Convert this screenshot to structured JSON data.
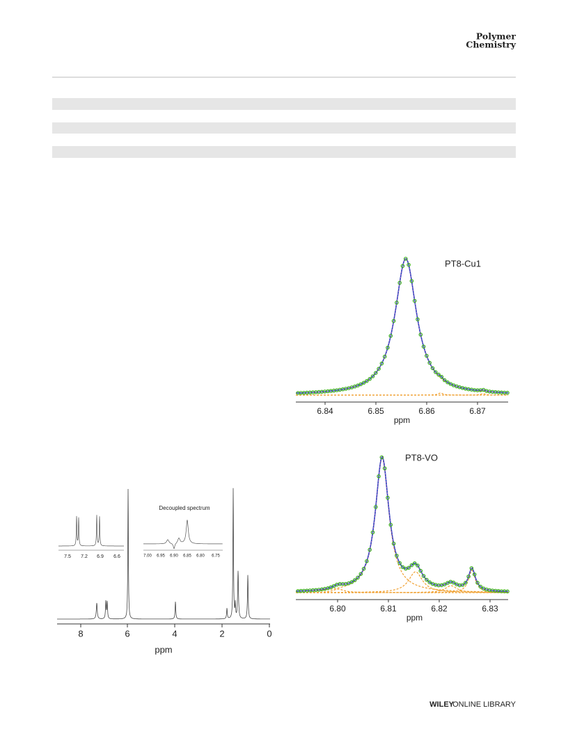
{
  "header": {
    "title_lines": [
      "Polymer",
      "Chemistry"
    ]
  },
  "figures": [
    {
      "x_axis_label": "ppm",
      "xticks": [
        "8",
        "6",
        "4",
        "2",
        "0"
      ],
      "insets": [
        {
          "xticks": [
            "7.5",
            "7.2",
            "6.9",
            "6.6"
          ]
        },
        {
          "title": "Decoupled spectrum",
          "xticks": [
            "7.00",
            "6.95",
            "6.90",
            "6.85",
            "6.80",
            "6.75"
          ]
        }
      ]
    },
    {
      "label": "PT8-Cu1",
      "x_axis_label": "ppm",
      "xticks": [
        "6.84",
        "6.85",
        "6.86",
        "6.87"
      ]
    },
    {
      "label": "PT8-VO",
      "x_axis_label": "ppm",
      "xticks": [
        "6.80",
        "6.81",
        "6.82",
        "6.83"
      ]
    }
  ],
  "footer": {
    "publisher": "WILEY",
    "library": "ONLINE LIBRARY"
  }
}
